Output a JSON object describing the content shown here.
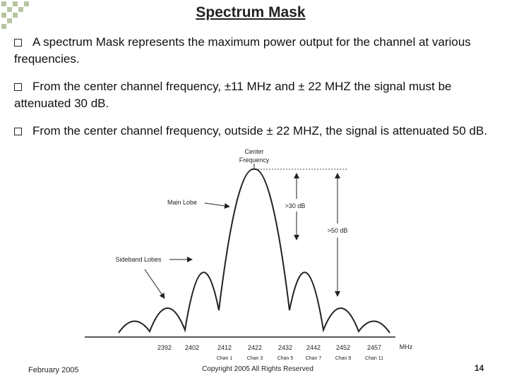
{
  "header": {
    "title": "Spectrum Mask"
  },
  "bullets": [
    "A spectrum Mask represents the maximum power output for the channel at various frequencies.",
    "From the center channel frequency, ±11 MHz and ± 22 MHZ the signal must be attenuated 30 dB.",
    "From the center channel frequency, outside ± 22 MHZ, the signal is attenuated 50 dB."
  ],
  "diagram": {
    "center_label": [
      "Center",
      "Frequency"
    ],
    "main_lobe": "Main Lobe",
    "sideband_lobes": "Sideband Lobes",
    "attenuation_30": ">30 dB",
    "attenuation_50": ">50 dB",
    "frequencies": [
      2392,
      2402,
      2412,
      2422,
      2432,
      2442,
      2452,
      2457
    ],
    "unit": "MHz",
    "channels": [
      "Chan 1",
      "Chan 3",
      "Chan 5",
      "Chan 7",
      "Chan 9",
      "Chan 11"
    ]
  },
  "footer": {
    "date": "February 2005",
    "copyright": "Copyright 2005 All Rights Reserved",
    "page": "14"
  }
}
